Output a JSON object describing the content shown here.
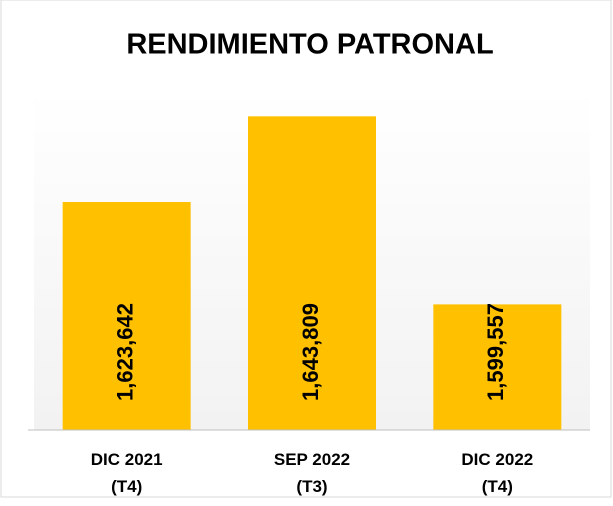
{
  "chart_data": {
    "type": "bar",
    "title": "RENDIMIENTO PATRONAL",
    "categories": [
      "DIC 2021\n(T4)",
      "SEP 2022\n(T3)",
      "DIC 2022\n(T4)"
    ],
    "values": [
      1623642,
      1643809,
      1599557
    ],
    "value_labels": [
      "1,623,642",
      "1,643,809",
      "1,599,557"
    ],
    "color": "#ffc000",
    "ylim": [
      1570000,
      1650000
    ]
  }
}
